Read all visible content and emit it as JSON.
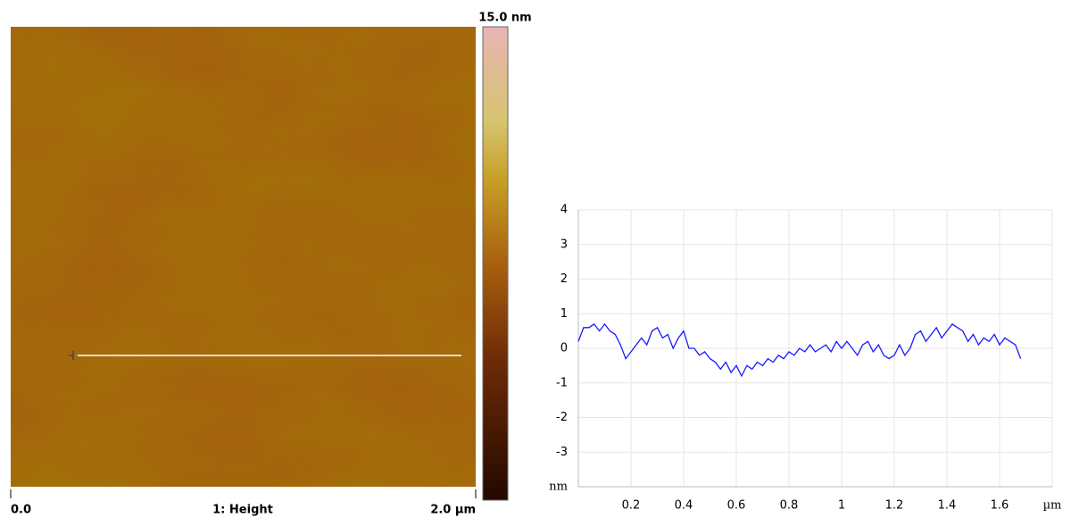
{
  "image_panel": {
    "scale_max": "15.0 nm",
    "x_start": "0.0",
    "channel": "1: Height",
    "x_end": "2.0 µm"
  },
  "chart_data": {
    "type": "line",
    "x": [
      0,
      0.02,
      0.04,
      0.06,
      0.08,
      0.1,
      0.12,
      0.14,
      0.16,
      0.18,
      0.2,
      0.22,
      0.24,
      0.26,
      0.28,
      0.3,
      0.32,
      0.34,
      0.36,
      0.38,
      0.4,
      0.42,
      0.44,
      0.46,
      0.48,
      0.5,
      0.52,
      0.54,
      0.56,
      0.58,
      0.6,
      0.62,
      0.64,
      0.66,
      0.68,
      0.7,
      0.72,
      0.74,
      0.76,
      0.78,
      0.8,
      0.82,
      0.84,
      0.86,
      0.88,
      0.9,
      0.92,
      0.94,
      0.96,
      0.98,
      1,
      1.02,
      1.04,
      1.06,
      1.08,
      1.1,
      1.12,
      1.14,
      1.16,
      1.18,
      1.2,
      1.22,
      1.24,
      1.26,
      1.28,
      1.3,
      1.32,
      1.34,
      1.36,
      1.38,
      1.4,
      1.42,
      1.44,
      1.46,
      1.48,
      1.5,
      1.52,
      1.54,
      1.56,
      1.58,
      1.6,
      1.62,
      1.64,
      1.66,
      1.68
    ],
    "values": [
      0.2,
      0.6,
      0.6,
      0.7,
      0.5,
      0.7,
      0.5,
      0.4,
      0.1,
      -0.3,
      -0.1,
      0.1,
      0.3,
      0.1,
      0.5,
      0.6,
      0.3,
      0.4,
      0.0,
      0.3,
      0.5,
      0.0,
      0.0,
      -0.2,
      -0.1,
      -0.3,
      -0.4,
      -0.6,
      -0.4,
      -0.7,
      -0.5,
      -0.8,
      -0.5,
      -0.6,
      -0.4,
      -0.5,
      -0.3,
      -0.4,
      -0.2,
      -0.3,
      -0.1,
      -0.2,
      0.0,
      -0.1,
      0.1,
      -0.1,
      0.0,
      0.1,
      -0.1,
      0.2,
      0.0,
      0.2,
      0.0,
      -0.2,
      0.1,
      0.2,
      -0.1,
      0.1,
      -0.2,
      -0.3,
      -0.2,
      0.1,
      -0.2,
      0.0,
      0.4,
      0.5,
      0.2,
      0.4,
      0.6,
      0.3,
      0.5,
      0.7,
      0.6,
      0.5,
      0.2,
      0.4,
      0.1,
      0.3,
      0.2,
      0.4,
      0.1,
      0.3,
      0.2,
      0.1,
      -0.3
    ],
    "color": "#1a1aff",
    "xlim": [
      0,
      1.8
    ],
    "xticks": [
      0.2,
      0.4,
      0.6,
      0.8,
      1,
      1.2,
      1.4,
      1.6,
      {
        "value": 1.8,
        "label": "µm"
      }
    ],
    "ylim": [
      -4,
      4
    ],
    "yticks": [
      {
        "value": -4,
        "label": "nm"
      },
      -3,
      -2,
      -1,
      0,
      1,
      2,
      3,
      4
    ],
    "grid": true
  }
}
